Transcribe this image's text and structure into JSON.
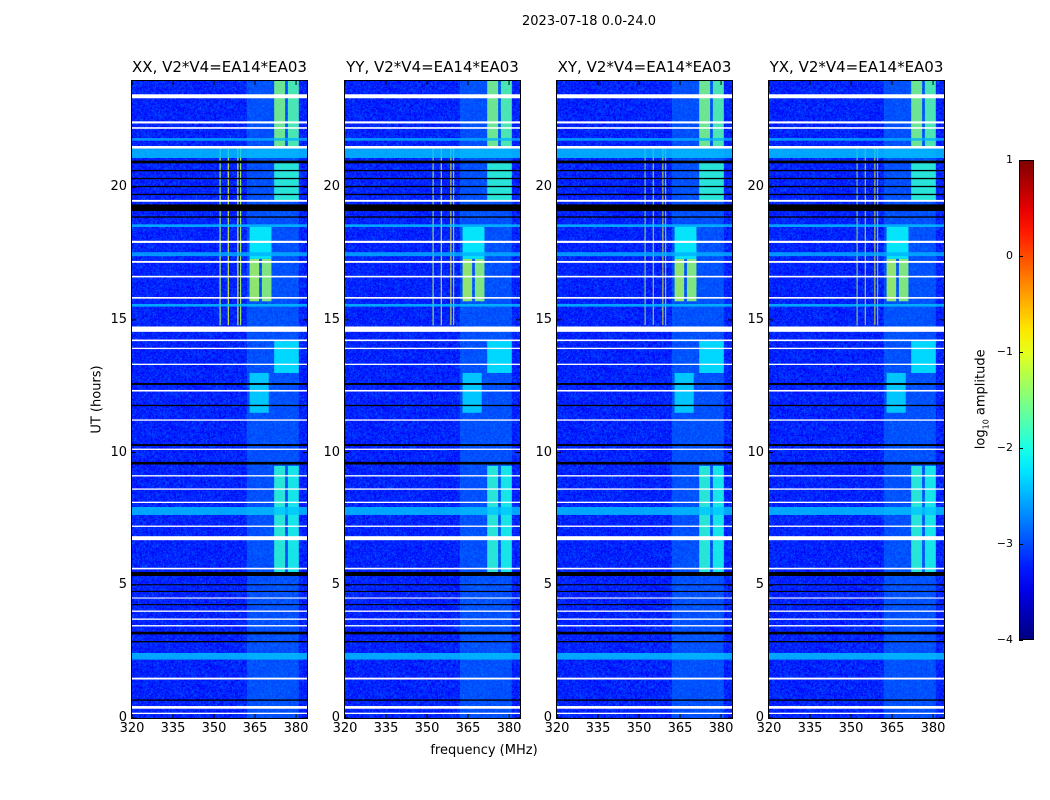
{
  "chart_data": {
    "type": "heatmap",
    "title": "2023-07-18 0.0-24.0",
    "xlabel": "frequency (MHz)",
    "ylabel": "UT (hours)",
    "xlim": [
      320,
      384
    ],
    "ylim": [
      0,
      24
    ],
    "xticks": [
      "320",
      "335",
      "350",
      "365",
      "380"
    ],
    "xtick_values": [
      320,
      335,
      350,
      365,
      380
    ],
    "yticks": [
      "0",
      "5",
      "10",
      "15",
      "20"
    ],
    "ytick_values": [
      0,
      5,
      10,
      15,
      20
    ],
    "panels": [
      {
        "title": "XX, V2*V4=EA14*EA03",
        "rfi_strength": 1.0
      },
      {
        "title": "YY, V2*V4=EA14*EA03",
        "rfi_strength": 0.9
      },
      {
        "title": "XY, V2*V4=EA14*EA03",
        "rfi_strength": 0.8
      },
      {
        "title": "YX, V2*V4=EA14*EA03",
        "rfi_strength": 0.8
      }
    ],
    "colorbar": {
      "label_main": "log",
      "label_sub": "10",
      "label_rest": " amplitude",
      "vmin": -4,
      "vmax": 1,
      "ticks": [
        "1",
        "0",
        "−1",
        "−2",
        "−3",
        "−4"
      ],
      "tick_values": [
        1,
        0,
        -1,
        -2,
        -3,
        -4
      ],
      "colormap": "jet"
    },
    "background_level": -3.2,
    "freq_bands": [
      {
        "f0": 362,
        "f1": 381,
        "t0": 0,
        "t1": 24,
        "value": -2.7
      },
      {
        "f0": 372,
        "f1": 376,
        "t0": 21.5,
        "t1": 24,
        "value": -1.5
      },
      {
        "f0": 377,
        "f1": 381,
        "t0": 21.5,
        "t1": 24,
        "value": -1.7
      },
      {
        "f0": 372,
        "f1": 376,
        "t0": 5.5,
        "t1": 9.5,
        "value": -1.9
      },
      {
        "f0": 377,
        "f1": 381,
        "t0": 5.5,
        "t1": 9.5,
        "value": -2.0
      },
      {
        "f0": 363,
        "f1": 366.5,
        "t0": 15.7,
        "t1": 17.3,
        "value": -1.3
      },
      {
        "f0": 367.5,
        "f1": 371,
        "t0": 15.7,
        "t1": 17.3,
        "value": -1.4
      },
      {
        "f0": 363,
        "f1": 371,
        "t0": 17.3,
        "t1": 18.5,
        "value": -2.1
      },
      {
        "f0": 372,
        "f1": 381,
        "t0": 19.5,
        "t1": 21.0,
        "value": -1.9
      },
      {
        "f0": 372,
        "f1": 381,
        "t0": 13.0,
        "t1": 14.2,
        "value": -2.2
      },
      {
        "f0": 363,
        "f1": 370,
        "t0": 11.5,
        "t1": 13.0,
        "value": -2.3
      }
    ],
    "rfi_lines": [
      {
        "f": 352.0,
        "t0": 14.8,
        "t1": 21.5,
        "value": -1.2
      },
      {
        "f": 355.0,
        "t0": 14.8,
        "t1": 21.5,
        "value": -1.0
      },
      {
        "f": 358.5,
        "t0": 14.8,
        "t1": 21.5,
        "value": -0.9
      },
      {
        "f": 359.5,
        "t0": 14.8,
        "t1": 21.5,
        "value": -1.3
      }
    ],
    "row_bands": [
      {
        "t0": 23.35,
        "t1": 23.5,
        "kind": "flag"
      },
      {
        "t0": 22.4,
        "t1": 22.48,
        "kind": "flag"
      },
      {
        "t0": 22.2,
        "t1": 22.26,
        "kind": "flag"
      },
      {
        "t0": 21.75,
        "t1": 21.85,
        "kind": "level",
        "value": -2.5
      },
      {
        "t0": 21.45,
        "t1": 21.55,
        "kind": "flag"
      },
      {
        "t0": 21.1,
        "t1": 21.45,
        "kind": "level",
        "value": -2.4
      },
      {
        "t0": 20.9,
        "t1": 21.0,
        "kind": "zero"
      },
      {
        "t0": 20.6,
        "t1": 20.65,
        "kind": "zero"
      },
      {
        "t0": 20.3,
        "t1": 20.35,
        "kind": "zero"
      },
      {
        "t0": 20.0,
        "t1": 20.05,
        "kind": "zero"
      },
      {
        "t0": 19.7,
        "t1": 19.75,
        "kind": "zero"
      },
      {
        "t0": 19.45,
        "t1": 19.52,
        "kind": "flag"
      },
      {
        "t0": 19.1,
        "t1": 19.35,
        "kind": "zero"
      },
      {
        "t0": 18.85,
        "t1": 18.9,
        "kind": "zero"
      },
      {
        "t0": 18.5,
        "t1": 18.6,
        "kind": "level",
        "value": -2.4
      },
      {
        "t0": 17.9,
        "t1": 17.98,
        "kind": "flag"
      },
      {
        "t0": 17.4,
        "t1": 17.55,
        "kind": "level",
        "value": -2.5
      },
      {
        "t0": 17.15,
        "t1": 17.22,
        "kind": "flag"
      },
      {
        "t0": 16.6,
        "t1": 16.66,
        "kind": "flag"
      },
      {
        "t0": 15.8,
        "t1": 15.86,
        "kind": "flag"
      },
      {
        "t0": 15.5,
        "t1": 15.6,
        "kind": "level",
        "value": -2.4
      },
      {
        "t0": 14.55,
        "t1": 14.75,
        "kind": "flag"
      },
      {
        "t0": 14.2,
        "t1": 14.26,
        "kind": "flag"
      },
      {
        "t0": 13.9,
        "t1": 13.95,
        "kind": "flag"
      },
      {
        "t0": 13.3,
        "t1": 13.35,
        "kind": "flag"
      },
      {
        "t0": 12.55,
        "t1": 12.62,
        "kind": "zero"
      },
      {
        "t0": 12.3,
        "t1": 12.36,
        "kind": "flag"
      },
      {
        "t0": 11.75,
        "t1": 11.8,
        "kind": "zero"
      },
      {
        "t0": 11.2,
        "t1": 11.25,
        "kind": "flag"
      },
      {
        "t0": 10.25,
        "t1": 10.32,
        "kind": "zero"
      },
      {
        "t0": 10.1,
        "t1": 10.15,
        "kind": "flag"
      },
      {
        "t0": 9.55,
        "t1": 9.65,
        "kind": "zero"
      },
      {
        "t0": 9.1,
        "t1": 9.15,
        "kind": "flag"
      },
      {
        "t0": 8.6,
        "t1": 8.65,
        "kind": "flag"
      },
      {
        "t0": 8.1,
        "t1": 8.15,
        "kind": "flag"
      },
      {
        "t0": 7.65,
        "t1": 7.95,
        "kind": "level",
        "value": -2.4
      },
      {
        "t0": 7.2,
        "t1": 7.25,
        "kind": "flag"
      },
      {
        "t0": 6.7,
        "t1": 6.85,
        "kind": "flag"
      },
      {
        "t0": 5.6,
        "t1": 5.66,
        "kind": "flag"
      },
      {
        "t0": 5.35,
        "t1": 5.5,
        "kind": "zero"
      },
      {
        "t0": 5.0,
        "t1": 5.04,
        "kind": "zero"
      },
      {
        "t0": 4.75,
        "t1": 4.79,
        "kind": "zero"
      },
      {
        "t0": 4.5,
        "t1": 4.54,
        "kind": "flag"
      },
      {
        "t0": 4.25,
        "t1": 4.29,
        "kind": "zero"
      },
      {
        "t0": 4.0,
        "t1": 4.05,
        "kind": "flag"
      },
      {
        "t0": 3.7,
        "t1": 3.75,
        "kind": "flag"
      },
      {
        "t0": 3.45,
        "t1": 3.5,
        "kind": "flag"
      },
      {
        "t0": 3.15,
        "t1": 3.25,
        "kind": "zero"
      },
      {
        "t0": 2.85,
        "t1": 2.9,
        "kind": "zero"
      },
      {
        "t0": 2.2,
        "t1": 2.45,
        "kind": "level",
        "value": -2.4
      },
      {
        "t0": 1.45,
        "t1": 1.52,
        "kind": "flag"
      },
      {
        "t0": 0.65,
        "t1": 0.7,
        "kind": "zero"
      },
      {
        "t0": 0.35,
        "t1": 0.45,
        "kind": "flag"
      },
      {
        "t0": 0.15,
        "t1": 0.2,
        "kind": "flag"
      }
    ]
  }
}
